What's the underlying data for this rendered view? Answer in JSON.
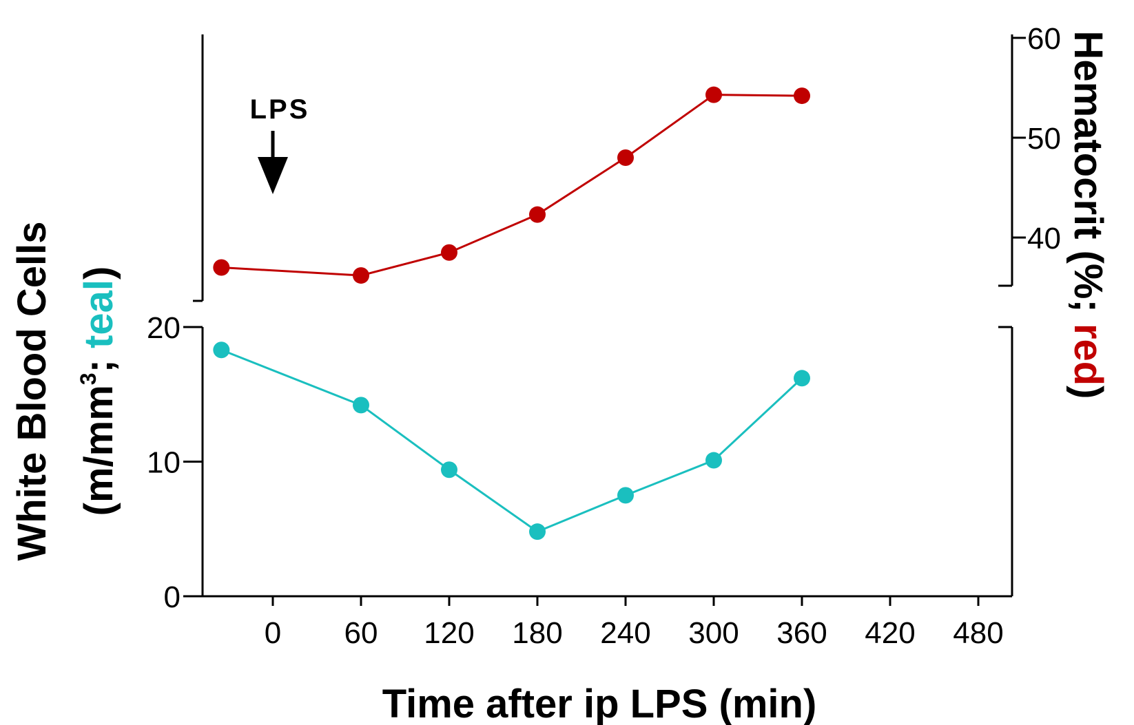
{
  "chart_data": {
    "type": "line",
    "x_axis": {
      "label": "Time after ip LPS (min)",
      "ticks": [
        "0",
        "60",
        "120",
        "180",
        "240",
        "300",
        "360",
        "420",
        "480"
      ],
      "range": [
        -35,
        500
      ]
    },
    "y_axis_left": {
      "label_line1": "White Blood Cells",
      "label_line2_prefix": "(m/mm",
      "label_line2_sup": "3",
      "label_line2_mid": "; ",
      "label_line2_color_word": "teal",
      "label_line2_suffix": ")",
      "ticks": [
        "0",
        "10",
        "20"
      ],
      "range": [
        0,
        20
      ]
    },
    "y_axis_right": {
      "label_prefix": "Hematocrit (%; ",
      "label_color_word": "red",
      "label_suffix": ")",
      "ticks": [
        "40",
        "50",
        "60"
      ],
      "range": [
        35,
        60
      ]
    },
    "series": [
      {
        "name": "teal",
        "axis": "left",
        "color": "#1ABFBF",
        "points": [
          {
            "x": -35,
            "y": 18.3
          },
          {
            "x": 60,
            "y": 14.2
          },
          {
            "x": 120,
            "y": 9.4
          },
          {
            "x": 180,
            "y": 4.8
          },
          {
            "x": 240,
            "y": 7.5
          },
          {
            "x": 300,
            "y": 10.1
          },
          {
            "x": 360,
            "y": 16.2
          }
        ]
      },
      {
        "name": "red",
        "axis": "right",
        "color": "#C00000",
        "points": [
          {
            "x": -35,
            "y": 37.0
          },
          {
            "x": 60,
            "y": 36.2
          },
          {
            "x": 120,
            "y": 38.5
          },
          {
            "x": 180,
            "y": 42.3
          },
          {
            "x": 240,
            "y": 48.0
          },
          {
            "x": 300,
            "y": 54.3
          },
          {
            "x": 360,
            "y": 54.2
          }
        ]
      }
    ],
    "annotation": {
      "text": "LPS",
      "x": 0
    }
  }
}
